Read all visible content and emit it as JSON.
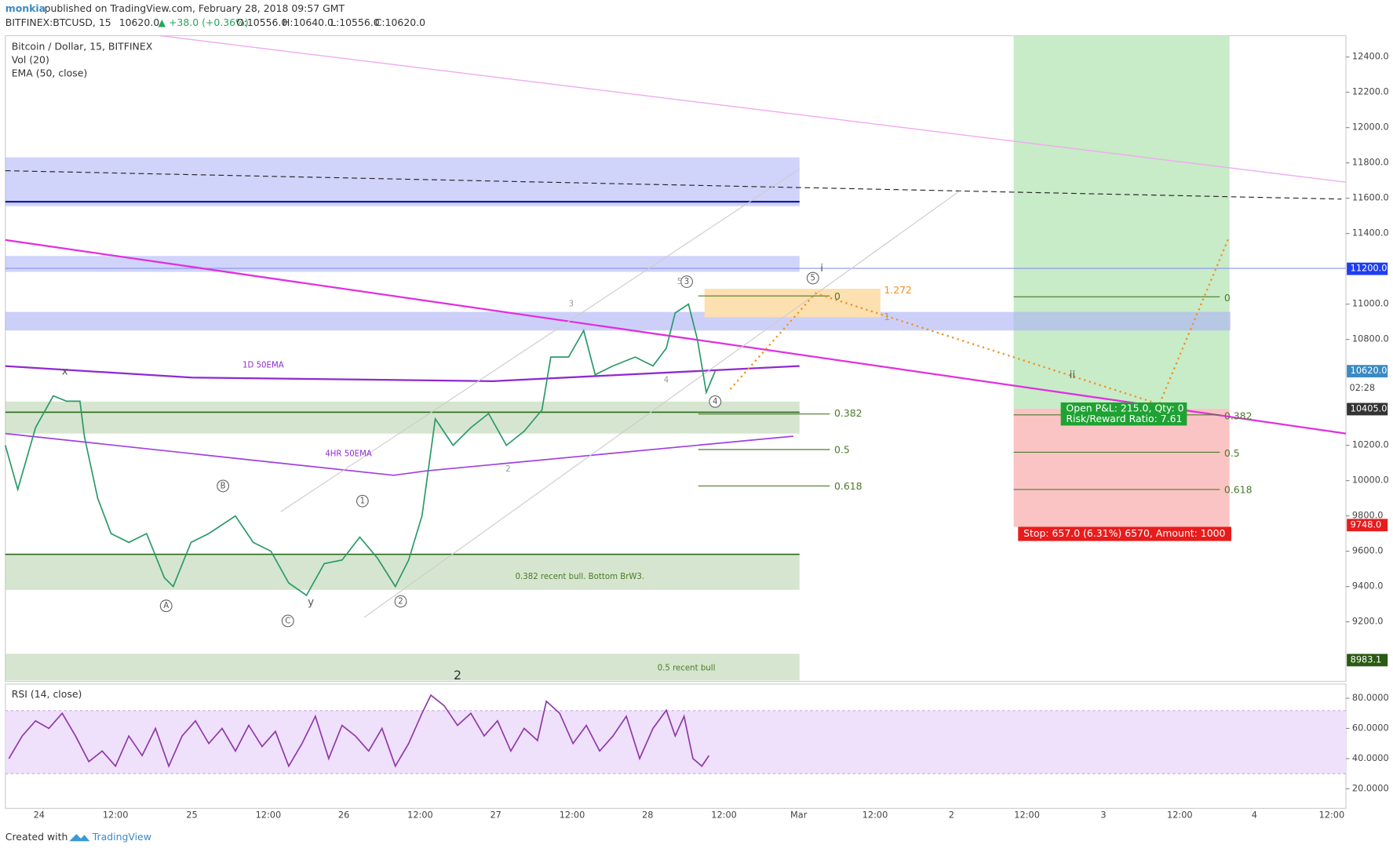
{
  "header": {
    "author": "monkia",
    "published": "published on TradingView.com, February 28, 2018 09:57 GMT",
    "symbol": "BITFINEX:BTCUSD, 15",
    "last": "10620.0",
    "change": "▲ +38.0 (+0.36%)",
    "open": "O:10556.0",
    "high": "H:10640.0",
    "low": "L:10556.0",
    "close": "C:10620.0"
  },
  "legend": {
    "title": "Bitcoin / Dollar, 15, BITFINEX",
    "volume": "Vol (20)",
    "ema": "EMA (50, close)",
    "rsi": "RSI (14, close)"
  },
  "price_axis": [
    {
      "value": 12400,
      "label": "12400.0"
    },
    {
      "value": 12200,
      "label": "12200.0"
    },
    {
      "value": 12000,
      "label": "12000.0"
    },
    {
      "value": 11800,
      "label": "11800.0"
    },
    {
      "value": 11600,
      "label": "11600.0"
    },
    {
      "value": 11400,
      "label": "11400.0"
    },
    {
      "value": 11000,
      "label": "11000.0"
    },
    {
      "value": 10800,
      "label": "10800.0"
    },
    {
      "value": 10200,
      "label": "10200.0"
    },
    {
      "value": 10000,
      "label": "10000.0"
    },
    {
      "value": 9800,
      "label": "9800.0"
    },
    {
      "value": 9600,
      "label": "9600.0"
    },
    {
      "value": 9400,
      "label": "9400.0"
    },
    {
      "value": 9200,
      "label": "9200.0"
    }
  ],
  "price_tags": [
    {
      "value": 11200,
      "label": "11200.0",
      "color": "#1e3ef0"
    },
    {
      "value": 10620,
      "label": "10620.0",
      "color": "#3a8ac2"
    },
    {
      "value": 10405,
      "label": "10405.0",
      "color": "#333333"
    },
    {
      "value": 9748,
      "label": "9748.0",
      "color": "#e81c1c"
    },
    {
      "value": 8983.1,
      "label": "8983.1",
      "color": "#2a5a14"
    }
  ],
  "countdown": "02:28",
  "rsi_axis": [
    {
      "value": 80,
      "label": "80.0000"
    },
    {
      "value": 60,
      "label": "60.0000"
    },
    {
      "value": 40,
      "label": "40.0000"
    },
    {
      "value": 20,
      "label": "20.0000"
    }
  ],
  "time_axis": [
    "24",
    "12:00",
    "25",
    "12:00",
    "26",
    "12:00",
    "27",
    "12:00",
    "28",
    "12:00",
    "Mar",
    "12:00",
    "2",
    "12:00",
    "3",
    "12:00",
    "4",
    "12:00"
  ],
  "price_path": {
    "x": [
      6,
      20,
      40,
      60,
      75,
      90,
      95,
      110,
      125,
      145,
      165,
      185,
      195,
      215,
      235,
      265,
      285,
      305,
      325,
      345,
      365,
      385,
      405,
      425,
      445,
      460,
      475,
      490,
      510,
      530,
      550,
      570,
      590,
      610,
      620,
      640,
      657,
      670,
      690,
      715,
      735,
      750,
      760,
      775,
      785,
      795,
      805
    ],
    "values": [
      10200,
      9950,
      10300,
      10480,
      10450,
      10450,
      10250,
      9900,
      9700,
      9650,
      9700,
      9450,
      9400,
      9650,
      9700,
      9800,
      9650,
      9600,
      9420,
      9350,
      9530,
      9550,
      9680,
      9560,
      9400,
      9550,
      9800,
      10350,
      10200,
      10300,
      10380,
      10200,
      10280,
      10400,
      10700,
      10700,
      10850,
      10600,
      10650,
      10700,
      10650,
      10750,
      10950,
      11000,
      10800,
      10500,
      10620
    ]
  },
  "rsi_path": {
    "x": [
      10,
      25,
      40,
      55,
      70,
      85,
      100,
      115,
      130,
      145,
      160,
      175,
      190,
      205,
      220,
      235,
      250,
      265,
      280,
      295,
      310,
      325,
      340,
      355,
      370,
      385,
      400,
      415,
      430,
      445,
      460,
      475,
      485,
      500,
      515,
      530,
      545,
      560,
      575,
      590,
      605,
      615,
      630,
      645,
      660,
      675,
      690,
      705,
      720,
      735,
      750,
      760,
      770,
      780,
      790,
      798
    ],
    "values": [
      40,
      55,
      65,
      60,
      70,
      55,
      38,
      45,
      35,
      55,
      42,
      60,
      35,
      55,
      65,
      50,
      60,
      45,
      62,
      48,
      58,
      35,
      50,
      68,
      40,
      62,
      55,
      45,
      60,
      35,
      50,
      70,
      82,
      75,
      62,
      70,
      55,
      65,
      45,
      60,
      52,
      78,
      70,
      50,
      62,
      45,
      55,
      68,
      40,
      60,
      72,
      55,
      68,
      40,
      35,
      42
    ]
  },
  "annotations": {
    "ema_1d": "1D 50EMA",
    "ema_4h": "4HR 50EMA",
    "bull_382": "0.382 recent bull. Bottom BrW3.",
    "bull_5": "0.5 recent bull",
    "fib_left": [
      "0",
      "1.272",
      "1",
      "0.382",
      "0.5",
      "0.618"
    ],
    "fib_right": [
      "0",
      "0.382",
      "0.5",
      "0.618"
    ],
    "pnl": "Open P&L: 215.0, Qty: 0",
    "rr": "Risk/Reward Ratio: 7.61",
    "stop": "Stop: 657.0 (6.31%) 6570, Amount: 1000",
    "waves": [
      "x",
      "y",
      "A",
      "B",
      "C",
      "1",
      "2",
      "3",
      "4",
      "5",
      "i",
      "ii",
      "2",
      "3",
      "4",
      "2",
      "5"
    ]
  },
  "footer": {
    "created": "Created with",
    "brand": "TradingView"
  }
}
